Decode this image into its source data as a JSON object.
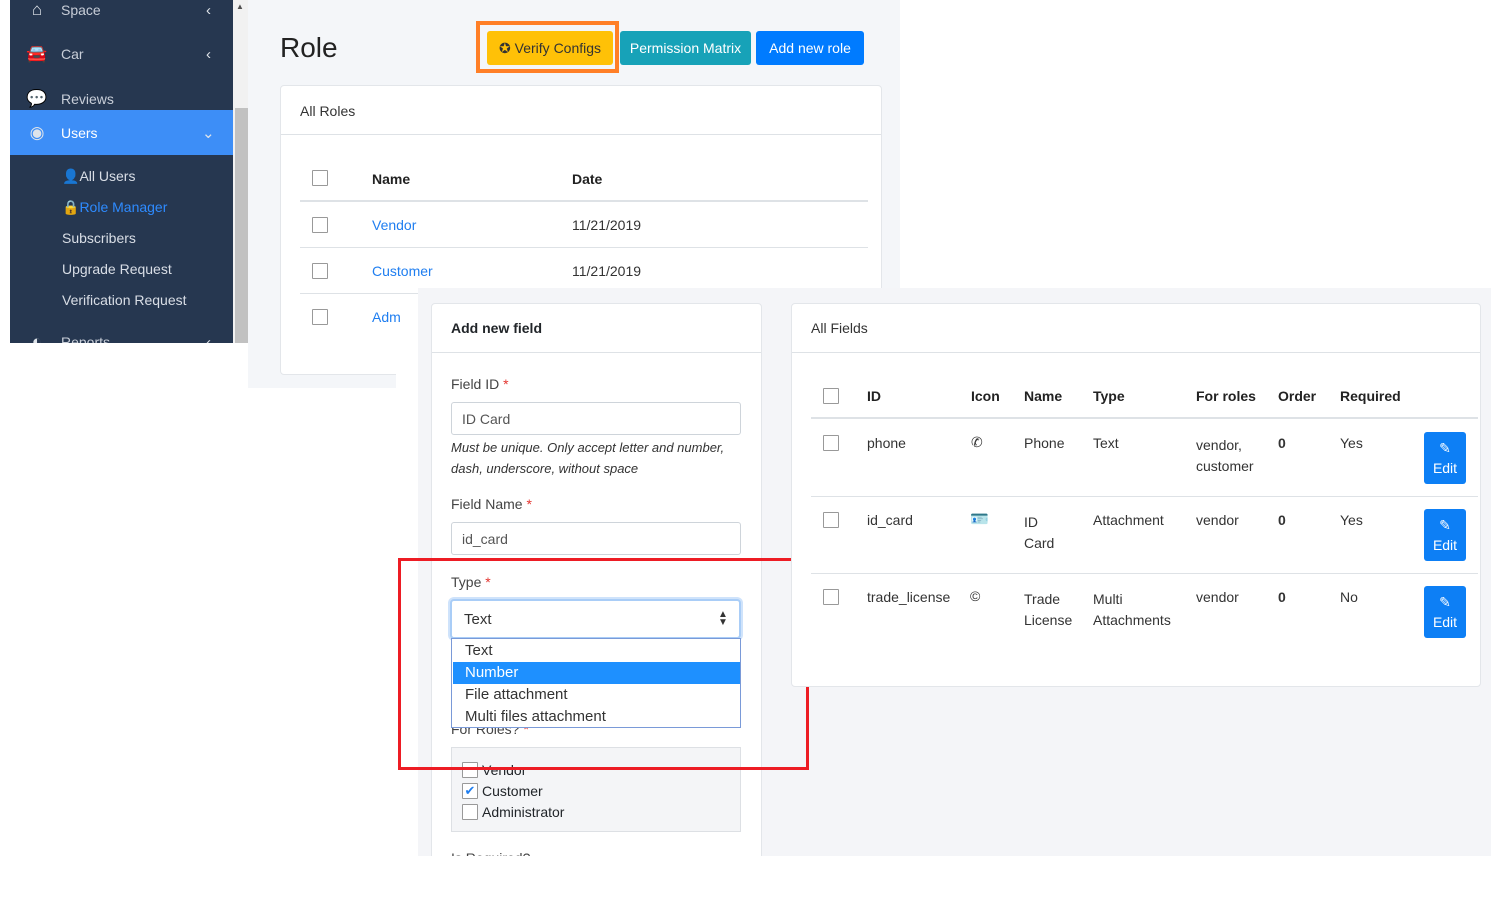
{
  "sidebar": {
    "items": [
      {
        "label": "Space",
        "icon": "home-icon"
      },
      {
        "label": "Car",
        "icon": "car-icon"
      },
      {
        "label": "Reviews",
        "icon": "comment-icon"
      },
      {
        "label": "Users",
        "icon": "users-icon"
      },
      {
        "label": "Reports",
        "icon": "pie-chart-icon"
      }
    ],
    "sub_items": [
      {
        "label": "All Users",
        "icon": "user-icon"
      },
      {
        "label": "Role Manager",
        "icon": "lock-icon"
      },
      {
        "label": "Subscribers"
      },
      {
        "label": "Upgrade Request"
      },
      {
        "label": "Verification Request"
      }
    ]
  },
  "page": {
    "title": "Role"
  },
  "toolbar": {
    "verify": "Verify Configs",
    "matrix": "Permission Matrix",
    "add_role": "Add new role"
  },
  "roles": {
    "card_title": "All Roles",
    "headers": {
      "name": "Name",
      "date": "Date"
    },
    "rows": [
      {
        "name": "Vendor",
        "date": "11/21/2019"
      },
      {
        "name": "Customer",
        "date": "11/21/2019"
      },
      {
        "name": "Adm",
        "date": ""
      }
    ]
  },
  "add_field": {
    "title": "Add new field",
    "field_id_label": "Field ID",
    "field_id_value": "ID Card",
    "help": "Must be unique. Only accept letter and number, dash, underscore, without space",
    "field_name_label": "Field Name",
    "field_name_value": "id_card",
    "type_label": "Type",
    "type_value": "Text",
    "type_options": [
      "Text",
      "Number",
      "File attachment",
      "Multi files attachment"
    ],
    "highlighted_option": "Number",
    "roles_label": "For Roles?",
    "roles": [
      {
        "label": "Vendor",
        "checked": false
      },
      {
        "label": "Customer",
        "checked": true
      },
      {
        "label": "Administrator",
        "checked": false
      }
    ],
    "required_label": "Is Required?"
  },
  "all_fields": {
    "title": "All Fields",
    "headers": {
      "id": "ID",
      "icon": "Icon",
      "name": "Name",
      "type": "Type",
      "roles": "For roles",
      "order": "Order",
      "required": "Required"
    },
    "edit_label": "Edit",
    "rows": [
      {
        "id": "phone",
        "icon": "phone-icon",
        "name": "Phone",
        "type": "Text",
        "roles": "vendor, customer",
        "order": "0",
        "required": "Yes"
      },
      {
        "id": "id_card",
        "icon": "id-card-icon",
        "name": "ID Card",
        "type": "Attachment",
        "roles": "vendor",
        "order": "0",
        "required": "Yes"
      },
      {
        "id": "trade_license",
        "icon": "copyright-icon",
        "name": "Trade License",
        "type": "Multi Attachments",
        "roles": "vendor",
        "order": "0",
        "required": "No"
      }
    ]
  },
  "colors": {
    "sidebar": "#263750",
    "active": "#3d8ef7",
    "warning": "#ffc107",
    "info": "#17a2b8",
    "primary": "#007bff",
    "highlight_orange": "#ff7f27",
    "highlight_red": "#ed1c24"
  }
}
